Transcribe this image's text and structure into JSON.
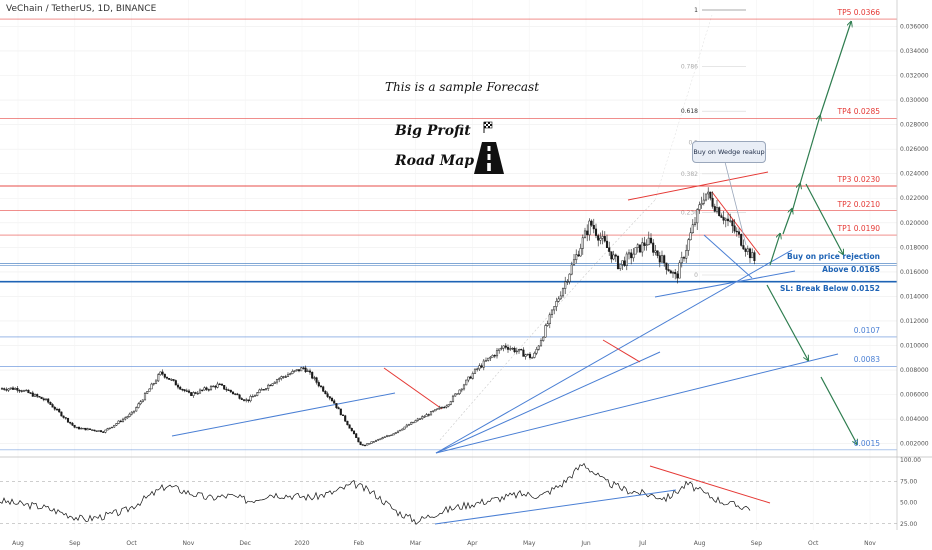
{
  "header": {
    "symbol_title": "VeChain / TetherUS, 1D, BINANCE"
  },
  "annotations": {
    "sample_text": "This is a sample Forecast",
    "big_profit": "Big Profit",
    "road_map": "Road Map",
    "callout": "Buy on Wedge reakup",
    "flag_icon": "checkered-flag-icon",
    "road_icon": "road-icon"
  },
  "colors": {
    "target_red": "#e53935",
    "level_blue": "#1e63b5",
    "trend_blue": "#4a7fd4",
    "arrow_green": "#2e7d4f",
    "candle_dark": "#1a1a1a",
    "grid": "#eeeeee"
  },
  "chart_data": [
    {
      "type": "candlestick",
      "title": "VeChain / TetherUS, 1D, BINANCE",
      "x_ticks": [
        "Aug",
        "Sep",
        "Oct",
        "Nov",
        "Dec",
        "2020",
        "Feb",
        "Mar",
        "Apr",
        "May",
        "Jun",
        "Jul",
        "Aug",
        "Sep",
        "Oct",
        "Nov"
      ],
      "y_ticks": [
        "0.036000",
        "0.034000",
        "0.032000",
        "0.030000",
        "0.028000",
        "0.026000",
        "0.024000",
        "0.022000",
        "0.020000",
        "0.018000",
        "0.016000",
        "0.014000",
        "0.012000",
        "0.010000",
        "0.008000",
        "0.006000",
        "0.004000",
        "0.002000"
      ],
      "ylim": [
        0.001,
        0.0375
      ],
      "price_path": [
        [
          "Aug",
          0.0065
        ],
        [
          "Sep",
          0.0055
        ],
        [
          "Oct",
          0.0033
        ],
        [
          "Oct",
          0.003
        ],
        [
          "Nov",
          0.0045
        ],
        [
          "Nov",
          0.0078
        ],
        [
          "Dec",
          0.006
        ],
        [
          "Dec",
          0.0068
        ],
        [
          "2020",
          0.0055
        ],
        [
          "Feb",
          0.0072
        ],
        [
          "Feb",
          0.0082
        ],
        [
          "Mar",
          0.0055
        ],
        [
          "Mar",
          0.0018
        ],
        [
          "Apr",
          0.0027
        ],
        [
          "May",
          0.004
        ],
        [
          "Jun",
          0.0052
        ],
        [
          "Jun",
          0.008
        ],
        [
          "Jun",
          0.01
        ],
        [
          "Jul",
          0.009
        ],
        [
          "Jul",
          0.0145
        ],
        [
          "Jul",
          0.02
        ],
        [
          "Jul",
          0.0165
        ],
        [
          "Aug",
          0.0185
        ],
        [
          "Aug",
          0.0155
        ],
        [
          "Aug",
          0.0225
        ],
        [
          "Aug",
          0.0195
        ],
        [
          "Sep",
          0.016
        ]
      ],
      "levels": [
        {
          "label": "TP5 0.0366",
          "value": 0.0366,
          "color": "#e53935"
        },
        {
          "label": "TP4 0.0285",
          "value": 0.0285,
          "color": "#e53935"
        },
        {
          "label": "TP3 0.0230",
          "value": 0.023,
          "color": "#e53935"
        },
        {
          "label": "TP2 0.0210",
          "value": 0.021,
          "color": "#e53935"
        },
        {
          "label": "TP1 0.0190",
          "value": 0.019,
          "color": "#e53935"
        },
        {
          "label": "Buy on price rejection",
          "value": 0.0167,
          "color": "#1e63b5"
        },
        {
          "label": "Above 0.0165",
          "value": 0.0165,
          "color": "#1e63b5"
        },
        {
          "label": "SL: Break Below 0.0152",
          "value": 0.0152,
          "color": "#1e63b5"
        },
        {
          "label": "0.0107",
          "value": 0.0107,
          "color": "#4a7fd4"
        },
        {
          "label": "0.0083",
          "value": 0.0083,
          "color": "#4a7fd4"
        },
        {
          "label": "0.0015",
          "value": 0.0015,
          "color": "#4a7fd4"
        }
      ],
      "fib_levels": [
        "1",
        "0.786",
        "0.618",
        "0.5",
        "0.382",
        "0.236",
        "0"
      ]
    },
    {
      "type": "line",
      "title": "",
      "y_ticks": [
        "100.00",
        "75.00",
        "50.00",
        "25.00"
      ],
      "ylim": [
        20,
        100
      ],
      "values": [
        52,
        48,
        45,
        38,
        30,
        34,
        40,
        55,
        70,
        62,
        55,
        58,
        52,
        60,
        58,
        56,
        62,
        72,
        60,
        40,
        28,
        38,
        45,
        50,
        55,
        60,
        58,
        72,
        96,
        75,
        65,
        60,
        55,
        72,
        58,
        48,
        44
      ]
    }
  ]
}
